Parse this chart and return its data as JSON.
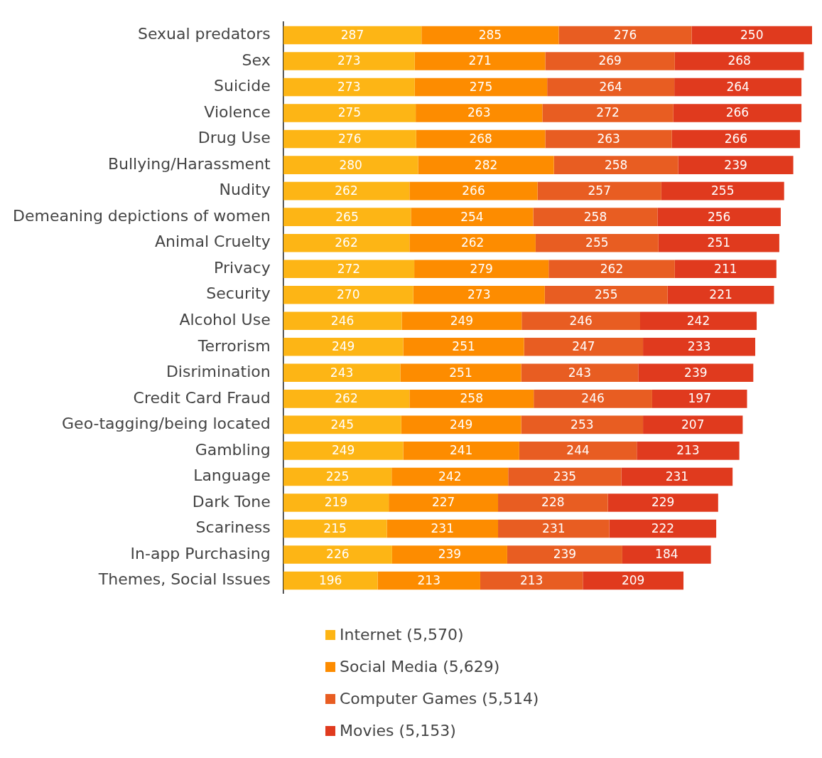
{
  "chart_data": {
    "type": "bar",
    "orientation": "horizontal",
    "stacked": true,
    "data_labels": true,
    "legend": "bottom",
    "categories": [
      "Sexual predators",
      "Sex",
      "Suicide",
      "Violence",
      "Drug Use",
      "Bullying/Harassment",
      "Nudity",
      "Demeaning depictions of women",
      "Animal Cruelty",
      "Privacy",
      "Security",
      "Alcohol Use",
      "Terrorism",
      "Disrimination",
      "Credit Card Fraud",
      "Geo-tagging/being located",
      "Gambling",
      "Language",
      "Dark Tone",
      "Scariness",
      "In-app Purchasing",
      "Themes, Social Issues"
    ],
    "series": [
      {
        "name": "Internet (5,570)",
        "color": "#fdb515",
        "values": [
          287,
          273,
          273,
          275,
          276,
          280,
          262,
          265,
          262,
          272,
          270,
          246,
          249,
          243,
          262,
          245,
          249,
          225,
          219,
          215,
          226,
          196
        ]
      },
      {
        "name": "Social Media (5,629)",
        "color": "#fd8c00",
        "values": [
          285,
          271,
          275,
          263,
          268,
          282,
          266,
          254,
          262,
          279,
          273,
          249,
          251,
          251,
          258,
          249,
          241,
          242,
          227,
          231,
          239,
          213
        ]
      },
      {
        "name": "Computer Games (5,514)",
        "color": "#e85d22",
        "values": [
          276,
          269,
          264,
          272,
          263,
          258,
          257,
          258,
          255,
          262,
          255,
          246,
          247,
          243,
          246,
          253,
          244,
          235,
          228,
          231,
          239,
          213
        ]
      },
      {
        "name": "Movies (5,153)",
        "color": "#e03a1e",
        "values": [
          250,
          268,
          264,
          266,
          266,
          239,
          255,
          256,
          251,
          211,
          221,
          242,
          233,
          239,
          197,
          207,
          213,
          231,
          229,
          222,
          184,
          209
        ]
      }
    ]
  }
}
